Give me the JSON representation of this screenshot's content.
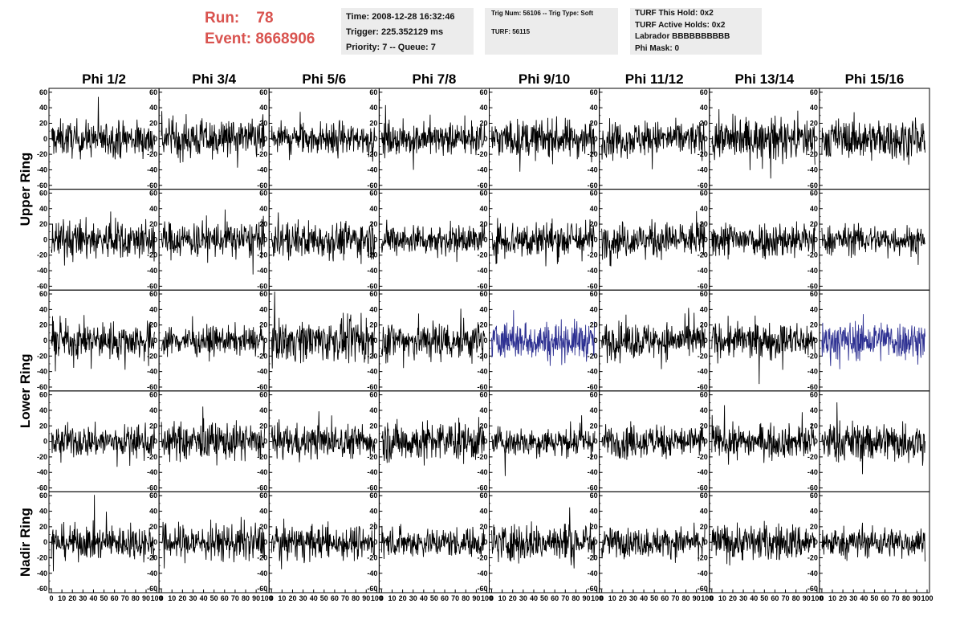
{
  "header": {
    "run_label": "Run:",
    "run_value": "78",
    "event_label": "Event:",
    "event_value": "8668906"
  },
  "info_time": {
    "time": "Time: 2008-12-28 16:32:46",
    "trigger": "Trigger: 225.352129 ms",
    "priority": "Priority: 7 -- Queue: 7"
  },
  "info_trig": {
    "trig": "Trig Num: 56106 -- Trig Type: Soft",
    "turf": "TURF: 56115"
  },
  "info_turf": {
    "this_hold": "TURF This Hold: 0x2",
    "active_holds": "TURF Active Holds: 0x2",
    "labrador": "Labrador BBBBBBBBBB",
    "phi_mask": "Phi Mask: 0"
  },
  "colors": {
    "trace": "#000000",
    "highlight_trace": "#2e3192",
    "header_red": "#d9534f",
    "panel_bg": "#ececec"
  },
  "chart_data": {
    "type": "line",
    "columns": [
      "Phi 1/2",
      "Phi 3/4",
      "Phi 5/6",
      "Phi 7/8",
      "Phi 9/10",
      "Phi 11/12",
      "Phi 13/14",
      "Phi 15/16"
    ],
    "rows": [
      "Upper Ring",
      "Lower Ring",
      "Nadir Ring"
    ],
    "panel_rows": 5,
    "samples_per_panel": 260,
    "xlim": [
      0,
      100
    ],
    "ylim": [
      -65,
      65
    ],
    "y_ticks": [
      "60",
      "40",
      "20",
      "0",
      "-20",
      "-40",
      "-60"
    ],
    "x_ticks": [
      "0",
      "10",
      "20",
      "30",
      "40",
      "50",
      "60",
      "70",
      "80",
      "90",
      "100"
    ],
    "highlighted_panels": [
      [
        2,
        4
      ],
      [
        2,
        7
      ]
    ],
    "amplitude_typical": 20,
    "grid": false
  }
}
